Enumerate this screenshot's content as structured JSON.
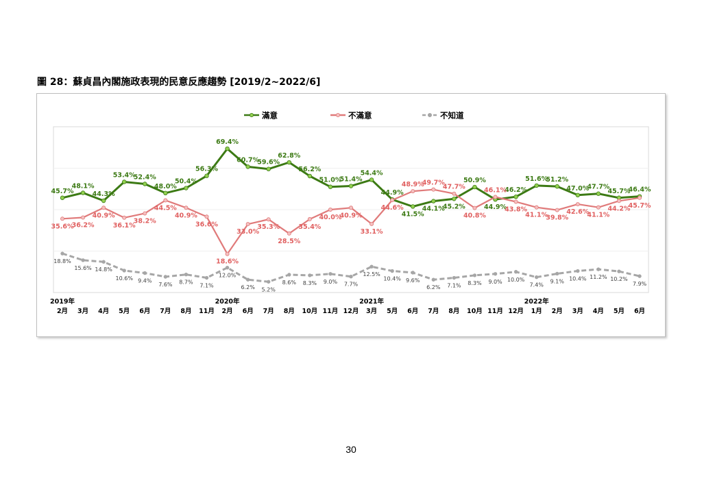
{
  "title": "圖 28：蘇貞昌內閣施政表現的民意反應趨勢  [2019/2~2022/6]",
  "page_number": "30",
  "chart_data": {
    "type": "line",
    "title": "",
    "xlabel": "",
    "ylabel": "",
    "ylim": [
      0,
      80
    ],
    "grid": true,
    "legend": "top",
    "categories": [
      "2月",
      "3月",
      "4月",
      "5月",
      "6月",
      "7月",
      "8月",
      "11月",
      "2月",
      "6月",
      "7月",
      "8月",
      "10月",
      "11月",
      "12月",
      "3月",
      "5月",
      "6月",
      "7月",
      "8月",
      "10月",
      "11月",
      "12月",
      "1月",
      "2月",
      "3月",
      "4月",
      "5月",
      "6月"
    ],
    "year_labels": [
      {
        "label": "2019年",
        "index": 0
      },
      {
        "label": "2020年",
        "index": 8
      },
      {
        "label": "2021年",
        "index": 15
      },
      {
        "label": "2022年",
        "index": 23
      }
    ],
    "series": [
      {
        "name": "滿意",
        "color": "#3c7a14",
        "marker_color": "#92d050",
        "values": [
          45.7,
          48.1,
          44.3,
          53.4,
          52.4,
          48.0,
          50.4,
          56.3,
          69.4,
          60.7,
          59.6,
          62.8,
          56.2,
          51.0,
          51.4,
          54.4,
          44.9,
          41.5,
          44.1,
          45.2,
          50.9,
          44.9,
          46.2,
          51.6,
          51.2,
          47.0,
          47.7,
          45.7,
          46.4
        ],
        "labels": [
          "45.7%",
          "48.1%",
          "44.3%",
          "53.4%",
          "52.4%",
          "48.0%",
          "50.4%",
          "56.3%",
          "69.4%",
          "60.7%",
          "59.6%",
          "62.8%",
          "56.2%",
          "51.0%",
          "51.4%",
          "54.4%",
          "44.9%",
          "41.5%",
          "44.1%",
          "45.2%",
          "50.9%",
          "44.9%",
          "46.2%",
          "51.6%",
          "51.2%",
          "47.0%",
          "47.7%",
          "45.7%",
          "46.4%"
        ]
      },
      {
        "name": "不滿意",
        "color": "#e07a7a",
        "marker_color": "#f4c0c0",
        "values": [
          35.6,
          36.2,
          40.9,
          36.1,
          38.2,
          44.5,
          40.9,
          36.6,
          18.6,
          33.0,
          35.3,
          28.5,
          35.4,
          40.0,
          40.9,
          33.1,
          44.6,
          48.9,
          49.7,
          47.7,
          40.8,
          46.1,
          43.8,
          41.1,
          39.8,
          42.6,
          41.1,
          44.2,
          45.7
        ],
        "labels": [
          "35.6%",
          "36.2%",
          "40.9%",
          "36.1%",
          "38.2%",
          "44.5%",
          "40.9%",
          "36.6%",
          "18.6%",
          "33.0%",
          "35.3%",
          "28.5%",
          "35.4%",
          "40.0%",
          "40.9%",
          "33.1%",
          "44.6%",
          "48.9%",
          "49.7%",
          "47.7%",
          "40.8%",
          "46.1%",
          "43.8%",
          "41.1%",
          "39.8%",
          "42.6%",
          "41.1%",
          "44.2%",
          "45.7%"
        ]
      },
      {
        "name": "不知道",
        "color": "#a6a6a6",
        "marker_color": "#a6a6a6",
        "values": [
          18.8,
          15.6,
          14.8,
          10.6,
          9.4,
          7.6,
          8.7,
          7.1,
          12.0,
          6.2,
          5.2,
          8.6,
          8.3,
          9.0,
          7.7,
          12.5,
          10.4,
          9.6,
          6.2,
          7.1,
          8.3,
          9.0,
          10.0,
          7.4,
          9.1,
          10.4,
          11.2,
          10.2,
          7.9
        ],
        "labels": [
          "18.8%",
          "15.6%",
          "14.8%",
          "10.6%",
          "9.4%",
          "7.6%",
          "8.7%",
          "7.1%",
          "12.0%",
          "6.2%",
          "5.2%",
          "8.6%",
          "8.3%",
          "9.0%",
          "7.7%",
          "12.5%",
          "10.4%",
          "9.6%",
          "6.2%",
          "7.1%",
          "8.3%",
          "9.0%",
          "10.0%",
          "7.4%",
          "9.1%",
          "10.4%",
          "11.2%",
          "10.2%",
          "7.9%"
        ]
      }
    ]
  }
}
